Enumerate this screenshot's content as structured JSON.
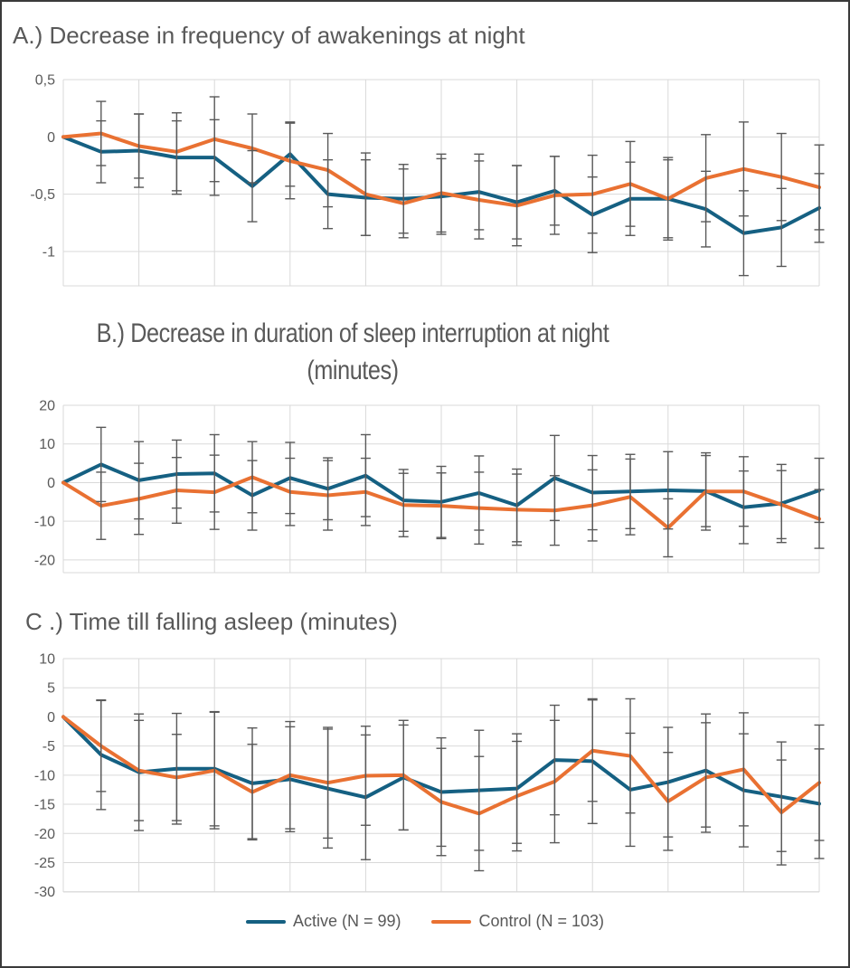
{
  "page": {
    "background": "#ffffff",
    "border_color": "#3a3a3a"
  },
  "colors": {
    "active": "#156082",
    "control": "#E97132",
    "error_bar": "#595959",
    "gridline": "#D9D9D9",
    "text": "#595959"
  },
  "legend": {
    "items": [
      {
        "label": "Active (N = 99)",
        "color": "#156082"
      },
      {
        "label": "Control (N = 103)",
        "color": "#E97132"
      }
    ]
  },
  "chart_data": [
    {
      "id": "A",
      "type": "line",
      "title": "A.) Decrease in frequency of awakenings at night",
      "xlabel": "",
      "ylabel": "",
      "x_axis_note": "21 unlabeled time points, vertical gridlines every 2 points",
      "x": [
        0,
        1,
        2,
        3,
        4,
        5,
        6,
        7,
        8,
        9,
        10,
        11,
        12,
        13,
        14,
        15,
        16,
        17,
        18,
        19,
        20
      ],
      "ylim": [
        -1.3,
        0.5
      ],
      "yticks": [
        0.5,
        0,
        -0.5,
        -1
      ],
      "ytick_labels": [
        "0,5",
        "0",
        "-0,5",
        "-1"
      ],
      "grid": true,
      "legend_position": "shared-bottom",
      "series": [
        {
          "name": "Active (N = 99)",
          "color": "#156082",
          "values": [
            0,
            -0.13,
            -0.12,
            -0.18,
            -0.18,
            -0.43,
            -0.15,
            -0.5,
            -0.53,
            -0.54,
            -0.52,
            -0.48,
            -0.57,
            -0.47,
            -0.68,
            -0.54,
            -0.54,
            -0.63,
            -0.84,
            -0.79,
            -0.62
          ],
          "errors": [
            0,
            0.27,
            0.32,
            0.32,
            0.33,
            0.31,
            0.28,
            0.3,
            0.33,
            0.3,
            0.33,
            0.33,
            0.32,
            0.3,
            0.33,
            0.32,
            0.34,
            0.33,
            0.37,
            0.34,
            0.3
          ]
        },
        {
          "name": "Control (N = 103)",
          "color": "#E97132",
          "values": [
            0,
            0.03,
            -0.08,
            -0.13,
            -0.02,
            -0.1,
            -0.21,
            -0.29,
            -0.5,
            -0.58,
            -0.49,
            -0.55,
            -0.6,
            -0.51,
            -0.5,
            -0.41,
            -0.54,
            -0.36,
            -0.28,
            -0.35,
            -0.44
          ],
          "errors": [
            0,
            0.28,
            0.28,
            0.34,
            0.37,
            0.3,
            0.33,
            0.32,
            0.36,
            0.3,
            0.34,
            0.34,
            0.35,
            0.34,
            0.34,
            0.37,
            0.36,
            0.38,
            0.41,
            0.38,
            0.37
          ]
        }
      ]
    },
    {
      "id": "B",
      "type": "line",
      "title": "B.) Decrease in duration of sleep interruption at night (minutes)",
      "title_lines": [
        "B.) Decrease in duration of sleep interruption at night",
        "(minutes)"
      ],
      "xlabel": "",
      "ylabel": "",
      "x_axis_note": "21 unlabeled time points, vertical gridlines every 2 points",
      "x": [
        0,
        1,
        2,
        3,
        4,
        5,
        6,
        7,
        8,
        9,
        10,
        11,
        12,
        13,
        14,
        15,
        16,
        17,
        18,
        19,
        20
      ],
      "ylim": [
        -23.3,
        20
      ],
      "yticks": [
        20,
        10,
        0,
        -10,
        -20
      ],
      "ytick_labels": [
        "20",
        "10",
        "0",
        "-10",
        "-20"
      ],
      "grid": true,
      "legend_position": "shared-bottom",
      "series": [
        {
          "name": "Active (N = 99)",
          "color": "#156082",
          "values": [
            0,
            4.7,
            0.6,
            2.2,
            2.4,
            -3.3,
            1.2,
            -1.6,
            1.8,
            -4.6,
            -5.0,
            -2.7,
            -5.9,
            1.2,
            -2.6,
            -2.3,
            -2.0,
            -2.2,
            -6.4,
            -5.4,
            -2.0
          ],
          "errors": [
            0,
            9.6,
            10.0,
            8.8,
            10.0,
            9.0,
            9.2,
            8.0,
            10.6,
            8.0,
            9.2,
            9.6,
            9.4,
            11.0,
            9.6,
            9.6,
            10.0,
            9.2,
            9.4,
            10.1,
            8.3
          ]
        },
        {
          "name": "Control (N = 103)",
          "color": "#E97132",
          "values": [
            0,
            -6.0,
            -4.2,
            -2.0,
            -2.5,
            1.4,
            -2.4,
            -3.3,
            -2.4,
            -5.8,
            -6.0,
            -6.6,
            -7.0,
            -7.2,
            -5.9,
            -3.7,
            -11.7,
            -2.3,
            -2.3,
            -5.7,
            -9.4
          ],
          "errors": [
            0,
            8.7,
            9.2,
            8.5,
            9.6,
            9.2,
            8.7,
            9.0,
            8.7,
            8.2,
            8.5,
            9.3,
            9.2,
            9.0,
            9.2,
            9.8,
            7.5,
            10.0,
            9.0,
            8.8,
            7.6
          ]
        }
      ]
    },
    {
      "id": "C",
      "type": "line",
      "title": "C .) Time till falling asleep (minutes)",
      "xlabel": "",
      "ylabel": "",
      "x_axis_note": "21 unlabeled time points, vertical gridlines every 2 points",
      "x": [
        0,
        1,
        2,
        3,
        4,
        5,
        6,
        7,
        8,
        9,
        10,
        11,
        12,
        13,
        14,
        15,
        16,
        17,
        18,
        19,
        20
      ],
      "ylim": [
        -30.05,
        10
      ],
      "yticks": [
        10,
        5,
        0,
        -5,
        -10,
        -15,
        -20,
        -25,
        -30
      ],
      "ytick_labels": [
        "10",
        "5",
        "0",
        "-5",
        "-10",
        "-15",
        "-20",
        "-25",
        "-30"
      ],
      "grid": true,
      "legend_position": "shared-bottom",
      "series": [
        {
          "name": "Active (N = 99)",
          "color": "#156082",
          "values": [
            0,
            -6.5,
            -9.5,
            -8.9,
            -8.9,
            -11.4,
            -10.7,
            -12.3,
            -13.8,
            -10.4,
            -12.9,
            -12.6,
            -12.3,
            -7.4,
            -7.6,
            -12.5,
            -11.2,
            -9.2,
            -12.6,
            -13.7,
            -14.9
          ],
          "errors": [
            0,
            9.4,
            10.0,
            9.5,
            9.8,
            9.5,
            9.0,
            10.2,
            10.7,
            9.0,
            9.3,
            10.3,
            9.4,
            9.4,
            10.7,
            9.7,
            9.4,
            9.7,
            9.7,
            9.4,
            9.4
          ]
        },
        {
          "name": "Control (N = 103)",
          "color": "#E97132",
          "values": [
            0,
            -5.0,
            -9.2,
            -10.4,
            -9.2,
            -12.9,
            -10.0,
            -11.3,
            -10.1,
            -10.0,
            -14.6,
            -16.6,
            -13.6,
            -11.1,
            -5.8,
            -6.7,
            -14.5,
            -10.4,
            -9.0,
            -16.4,
            -11.3
          ],
          "errors": [
            0,
            7.8,
            8.6,
            7.4,
            10.0,
            8.2,
            9.2,
            9.5,
            8.5,
            9.4,
            9.2,
            9.8,
            9.4,
            10.5,
            8.7,
            9.8,
            8.4,
            9.4,
            9.7,
            9.0,
            9.9
          ]
        }
      ]
    }
  ]
}
